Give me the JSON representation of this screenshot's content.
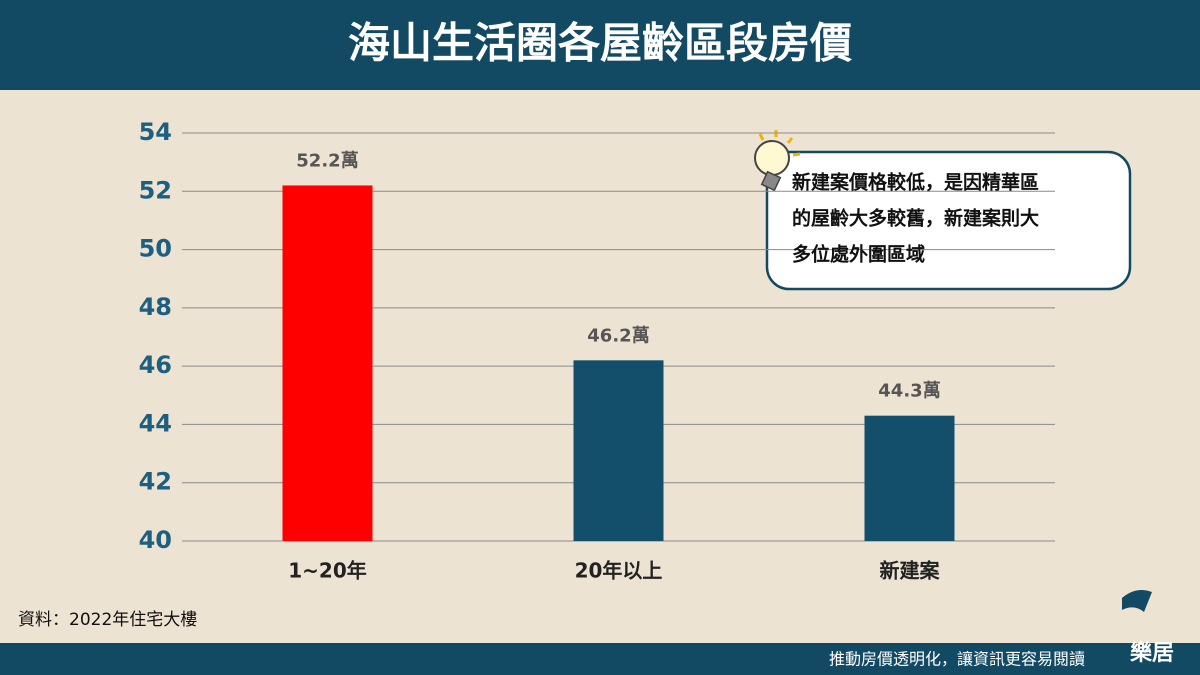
{
  "chart_data": {
    "type": "bar",
    "title": "海山生活圈各屋齡區段房價",
    "categories": [
      "1~20年",
      "20年以上",
      "新建案"
    ],
    "values": [
      52.2,
      46.2,
      44.3
    ],
    "value_labels": [
      "52.2萬",
      "46.2萬",
      "44.3萬"
    ],
    "colors": [
      "#ff0000",
      "#134e6b",
      "#134e6b"
    ],
    "ylim": [
      40,
      54
    ],
    "yticks": [
      40,
      42,
      44,
      46,
      48,
      50,
      52,
      54
    ],
    "grid": true,
    "annotation": [
      "新建案價格較低，是因精華區",
      "的屋齡大多較舊，新建案則大",
      "多位處外圍區域"
    ],
    "source": "資料：2022年住宅大樓"
  },
  "footer": {
    "tagline": "推動房價透明化，讓資訊更容易閱讀",
    "logo": "樂居"
  }
}
